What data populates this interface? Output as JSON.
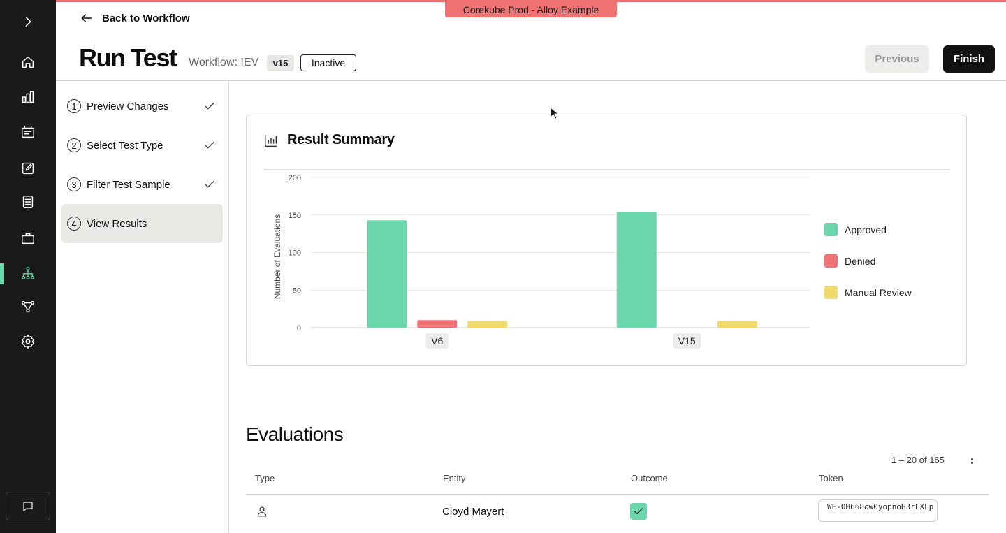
{
  "app": {
    "environment_banner": "Corekube Prod - Alloy Example",
    "colors": {
      "accent": "#6bd6ab",
      "env": "#f07272",
      "rail": "#1b1b1b"
    }
  },
  "rail": {
    "items": [
      {
        "icon": "chevron-right-icon"
      },
      {
        "icon": "home-icon"
      },
      {
        "icon": "bar-chart-icon"
      },
      {
        "icon": "inbox-icon"
      },
      {
        "icon": "edit-icon"
      },
      {
        "icon": "document-icon"
      },
      {
        "icon": "briefcase-icon"
      },
      {
        "icon": "workflow-tree-icon",
        "active": true
      },
      {
        "icon": "share-nodes-icon"
      },
      {
        "icon": "gear-icon"
      },
      {
        "icon": "chat-icon"
      }
    ]
  },
  "header": {
    "back_label": "Back to Workflow",
    "title": "Run Test",
    "workflow_label": "Workflow: IEV",
    "version": "v15",
    "status": "Inactive",
    "previous_label": "Previous",
    "finish_label": "Finish"
  },
  "steps": [
    {
      "num": "1",
      "label": "Preview Changes",
      "done": true
    },
    {
      "num": "2",
      "label": "Select Test Type",
      "done": true
    },
    {
      "num": "3",
      "label": "Filter Test Sample",
      "done": true
    },
    {
      "num": "4",
      "label": "View Results",
      "active": true
    }
  ],
  "summary": {
    "title": "Result Summary"
  },
  "chart_data": {
    "type": "bar",
    "categories": [
      "V6",
      "V15"
    ],
    "series": [
      {
        "name": "Approved",
        "color": "#6bd6ab",
        "values": [
          143,
          154
        ]
      },
      {
        "name": "Denied",
        "color": "#f07275",
        "values": [
          10,
          0
        ]
      },
      {
        "name": "Manual Review",
        "color": "#f2d96b",
        "values": [
          9,
          9
        ]
      }
    ],
    "ylabel": "Number of Evaluations",
    "ylim": [
      0,
      200
    ],
    "yticks": [
      0,
      50,
      100,
      150,
      200
    ],
    "grid": true,
    "legend": "right"
  },
  "evaluations": {
    "title": "Evaluations",
    "pager": "1 – 20 of 165",
    "columns": [
      "Type",
      "Entity",
      "Outcome",
      "Token"
    ],
    "rows": [
      {
        "type_icon": "person-icon",
        "entity": "Cloyd Mayert",
        "outcome": "approved",
        "token": "WE-0H668ow0yopnoH3rLXLp"
      }
    ]
  }
}
